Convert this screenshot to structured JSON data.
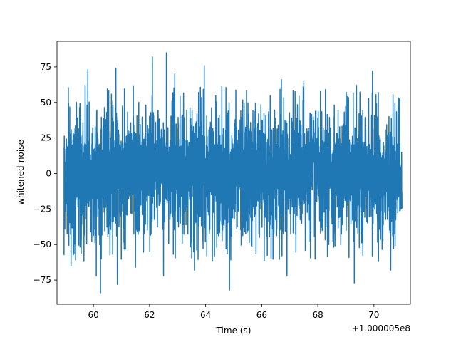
{
  "chart_data": {
    "type": "line",
    "title": "",
    "xlabel": "Time (s)",
    "ylabel": "whitened-noise",
    "x_offset_label": "+1.000005e8",
    "xlim": [
      58.7,
      71.3
    ],
    "ylim": [
      -92,
      93
    ],
    "x_ticks": [
      60,
      62,
      64,
      66,
      68,
      70
    ],
    "y_ticks": [
      -75,
      -50,
      -25,
      0,
      25,
      50,
      75
    ],
    "grid": false,
    "legend": "none",
    "series": [
      {
        "color": "#1f77b4",
        "x_range": [
          58.95,
          71.0
        ],
        "typical_envelope": [
          -45,
          45
        ],
        "peaks": [
          {
            "x": 62.6,
            "y": 85
          },
          {
            "x": 62.1,
            "y": 82
          },
          {
            "x": 59.8,
            "y": 73
          },
          {
            "x": 60.8,
            "y": 74
          },
          {
            "x": 63.95,
            "y": 76
          },
          {
            "x": 69.95,
            "y": 72
          },
          {
            "x": 62.9,
            "y": 70
          },
          {
            "x": 66.7,
            "y": 66
          },
          {
            "x": 67.5,
            "y": 65
          },
          {
            "x": 60.25,
            "y": -84
          },
          {
            "x": 64.85,
            "y": -82
          },
          {
            "x": 60.85,
            "y": -78
          },
          {
            "x": 69.3,
            "y": -77
          },
          {
            "x": 66.9,
            "y": -72
          },
          {
            "x": 62.5,
            "y": -72
          },
          {
            "x": 60.1,
            "y": -72
          },
          {
            "x": 63.6,
            "y": -68
          },
          {
            "x": 61.5,
            "y": -66
          },
          {
            "x": 70.6,
            "y": -68
          },
          {
            "x": 59.2,
            "y": -65
          }
        ]
      }
    ]
  }
}
